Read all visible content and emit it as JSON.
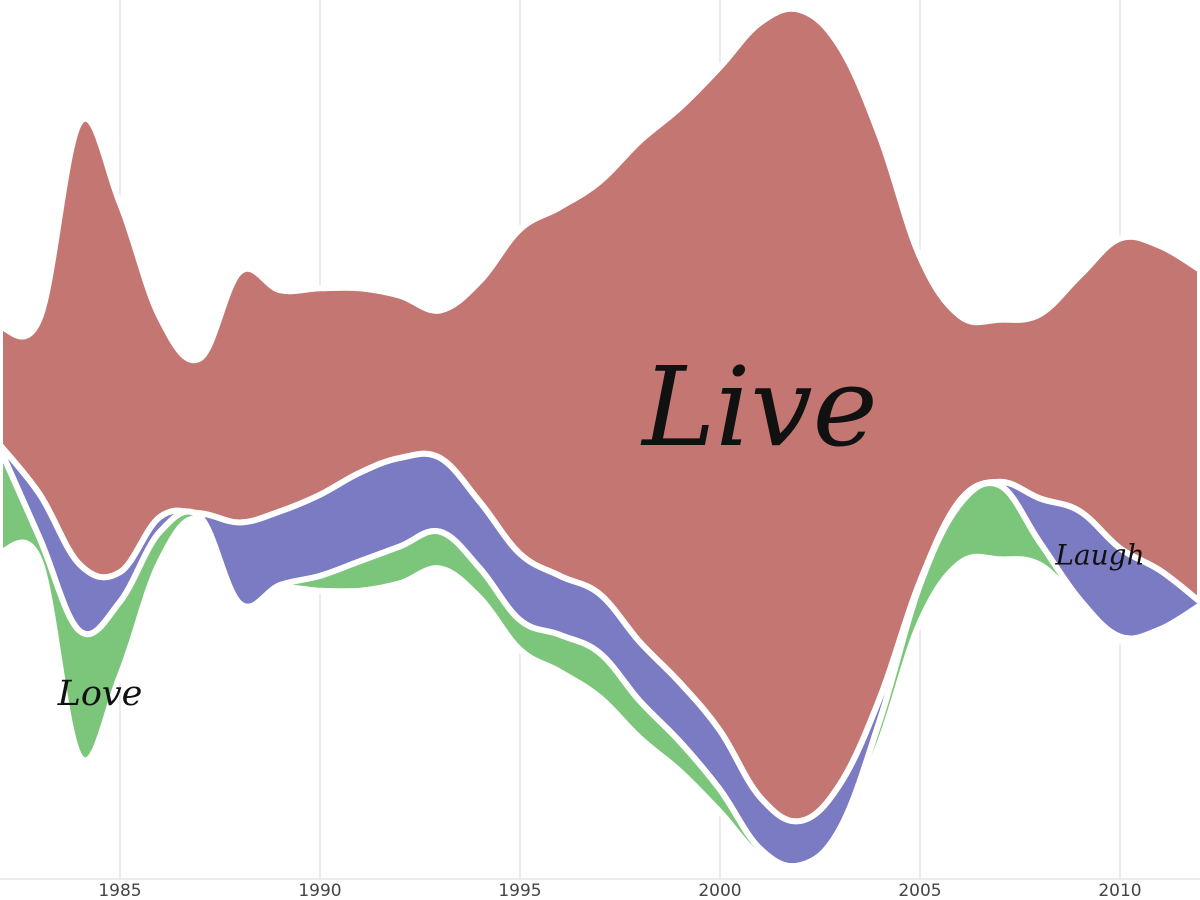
{
  "chart_data": {
    "type": "area",
    "subtype": "streamgraph",
    "title": "",
    "xlabel": "",
    "ylabel": "",
    "xlim": [
      1982,
      2012
    ],
    "x_ticks": [
      1985,
      1990,
      1995,
      2000,
      2005,
      2010
    ],
    "grid": "vertical",
    "legend": "none (inline labels)",
    "x": [
      1982,
      1983,
      1984,
      1985,
      1986,
      1987,
      1988,
      1989,
      1990,
      1991,
      1992,
      1993,
      1994,
      1995,
      1996,
      1997,
      1998,
      1999,
      2000,
      2001,
      2002,
      2003,
      2004,
      2005,
      2006,
      2007,
      2008,
      2009,
      2010,
      2011,
      2012
    ],
    "series": [
      {
        "name": "Live",
        "color": "#c47673",
        "values": [
          1.6,
          2.4,
          6.0,
          5.0,
          2.7,
          2.1,
          3.4,
          3.0,
          2.8,
          2.5,
          2.2,
          2.0,
          3.0,
          4.4,
          5.0,
          5.6,
          6.8,
          7.8,
          9.0,
          10.5,
          11.0,
          10.0,
          7.6,
          4.4,
          2.5,
          2.2,
          2.5,
          3.2,
          4.2,
          4.4,
          4.5
        ]
      },
      {
        "name": "Laugh",
        "color": "#7b7bc4",
        "values": [
          0.05,
          0.6,
          0.9,
          0.4,
          0.2,
          0.05,
          1.1,
          1.0,
          1.1,
          1.2,
          1.2,
          1.0,
          0.9,
          0.9,
          0.8,
          0.8,
          0.8,
          0.8,
          0.8,
          0.7,
          0.6,
          0.6,
          0.3,
          0.05,
          0.05,
          0.05,
          0.6,
          1.2,
          1.2,
          0.8,
          0.05
        ]
      },
      {
        "name": "Love",
        "color": "#7bc67a",
        "values": [
          1.4,
          0.3,
          1.7,
          1.0,
          0.4,
          0.05,
          0.05,
          0.05,
          0.2,
          0.4,
          0.5,
          0.5,
          0.4,
          0.4,
          0.5,
          0.6,
          0.5,
          0.4,
          0.3,
          0.1,
          0.05,
          0.05,
          0.3,
          0.5,
          0.8,
          1.0,
          0.3,
          0.05,
          0.05,
          0.05,
          0.05
        ]
      }
    ],
    "annotations": [
      {
        "text": "Live",
        "x": 2001.0
      },
      {
        "text": "Love",
        "x": 1984.5
      },
      {
        "text": "Laugh",
        "x": 2009.5
      }
    ]
  }
}
